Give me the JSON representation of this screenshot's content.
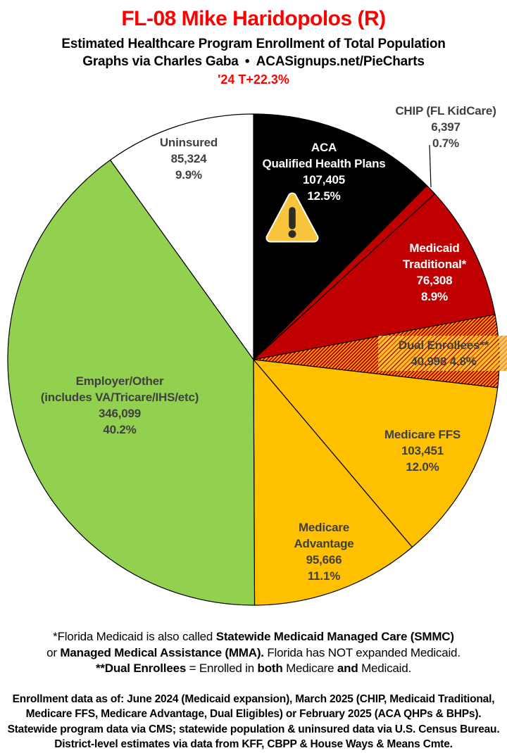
{
  "header": {
    "title": "FL-08 Mike Haridopolos (R)",
    "subtitle": "Estimated Healthcare Program Enrollment of Total Population",
    "credit": "Graphs via Charles Gaba • ACASignups.net/PieCharts",
    "trend": "'24 T+22.3%",
    "title_color": "#FF0000",
    "trend_color": "#FF0000"
  },
  "icons": {
    "warning": "warning-triangle ⚠"
  },
  "chart_data": {
    "type": "pie",
    "title": "Estimated Healthcare Program Enrollment of Total Population",
    "total": 861648,
    "direction": "clockwise",
    "start_angle_deg": 0,
    "legend_position": "labels-on-slices",
    "hatch_colors": {
      "background": "#FFC000",
      "stripe": "#C00000"
    },
    "label_gray": "#404040",
    "slices": [
      {
        "name": "ACA Qualified Health Plans",
        "value": 107405,
        "pct": "12.5%",
        "color": "#000000",
        "text_color": "#FFFFFF",
        "label_lines": [
          "ACA",
          "Qualified Health Plans",
          "107,405",
          "12.5%"
        ]
      },
      {
        "name": "CHIP (FL KidCare)",
        "value": 6397,
        "pct": "0.7%",
        "color": "#C00000",
        "text_color": "#404040",
        "label_lines": [
          "CHIP (FL KidCare)",
          "6,397",
          "0.7%"
        ]
      },
      {
        "name": "Medicaid Traditional*",
        "value": 76308,
        "pct": "8.9%",
        "color": "#C00000",
        "text_color": "#FFFFFF",
        "label_lines": [
          "Medicaid",
          "Traditional*",
          "76,308",
          "8.9%"
        ]
      },
      {
        "name": "Dual Enrollees**",
        "value": 40998,
        "pct": "4.8%",
        "color": "hatch",
        "text_color": "#404040",
        "label_lines": [
          "Dual Enrollees**",
          "40,998 4.8%"
        ]
      },
      {
        "name": "Medicare FFS",
        "value": 103451,
        "pct": "12.0%",
        "color": "#FFC000",
        "text_color": "#404040",
        "label_lines": [
          "Medicare FFS",
          "103,451",
          "12.0%"
        ]
      },
      {
        "name": "Medicare Advantage",
        "value": 95666,
        "pct": "11.1%",
        "color": "#FFC000",
        "text_color": "#404040",
        "label_lines": [
          "Medicare",
          "Advantage",
          "95,666",
          "11.1%"
        ]
      },
      {
        "name": "Employer/Other (includes VA/Tricare/IHS/etc)",
        "value": 346099,
        "pct": "40.2%",
        "color": "#92D050",
        "text_color": "#404040",
        "label_lines": [
          "Employer/Other",
          "(includes VA/Tricare/IHS/etc)",
          "346,099",
          "40.2%"
        ]
      },
      {
        "name": "Uninsured",
        "value": 85324,
        "pct": "9.9%",
        "color": "#FFFFFF",
        "text_color": "#404040",
        "label_lines": [
          "Uninsured",
          "85,324",
          "9.9%"
        ]
      }
    ]
  },
  "footnotes": [
    [
      {
        "t": "*Florida Medicaid is also called ",
        "b": false
      },
      {
        "t": "Statewide Medicaid Managed Care (SMMC)",
        "b": true
      }
    ],
    [
      {
        "t": "or ",
        "b": false
      },
      {
        "t": "Managed Medical Assistance (MMA).",
        "b": true
      },
      {
        "t": " Florida has NOT expanded Medicaid.",
        "b": false
      }
    ],
    [
      {
        "t": "**Dual Enrollees",
        "b": true
      },
      {
        "t": " = Enrolled in ",
        "b": false
      },
      {
        "t": "both",
        "b": true
      },
      {
        "t": " Medicare ",
        "b": false
      },
      {
        "t": "and",
        "b": true
      },
      {
        "t": " Medicaid.",
        "b": false
      }
    ]
  ],
  "source_note": [
    "Enrollment data as of: June 2024 (Medicaid expansion), March 2025 (CHIP, Medicaid Traditional,",
    "Medicare FFS, Medicare Advantage, Dual Eligibles) or February 2025 (ACA QHPs & BHPs).",
    "Statewide program data via CMS; statewide population & uninsured data via U.S. Census Bureau.",
    "District-level estimates via data from KFF, CBPP & House Ways & Means Cmte."
  ]
}
